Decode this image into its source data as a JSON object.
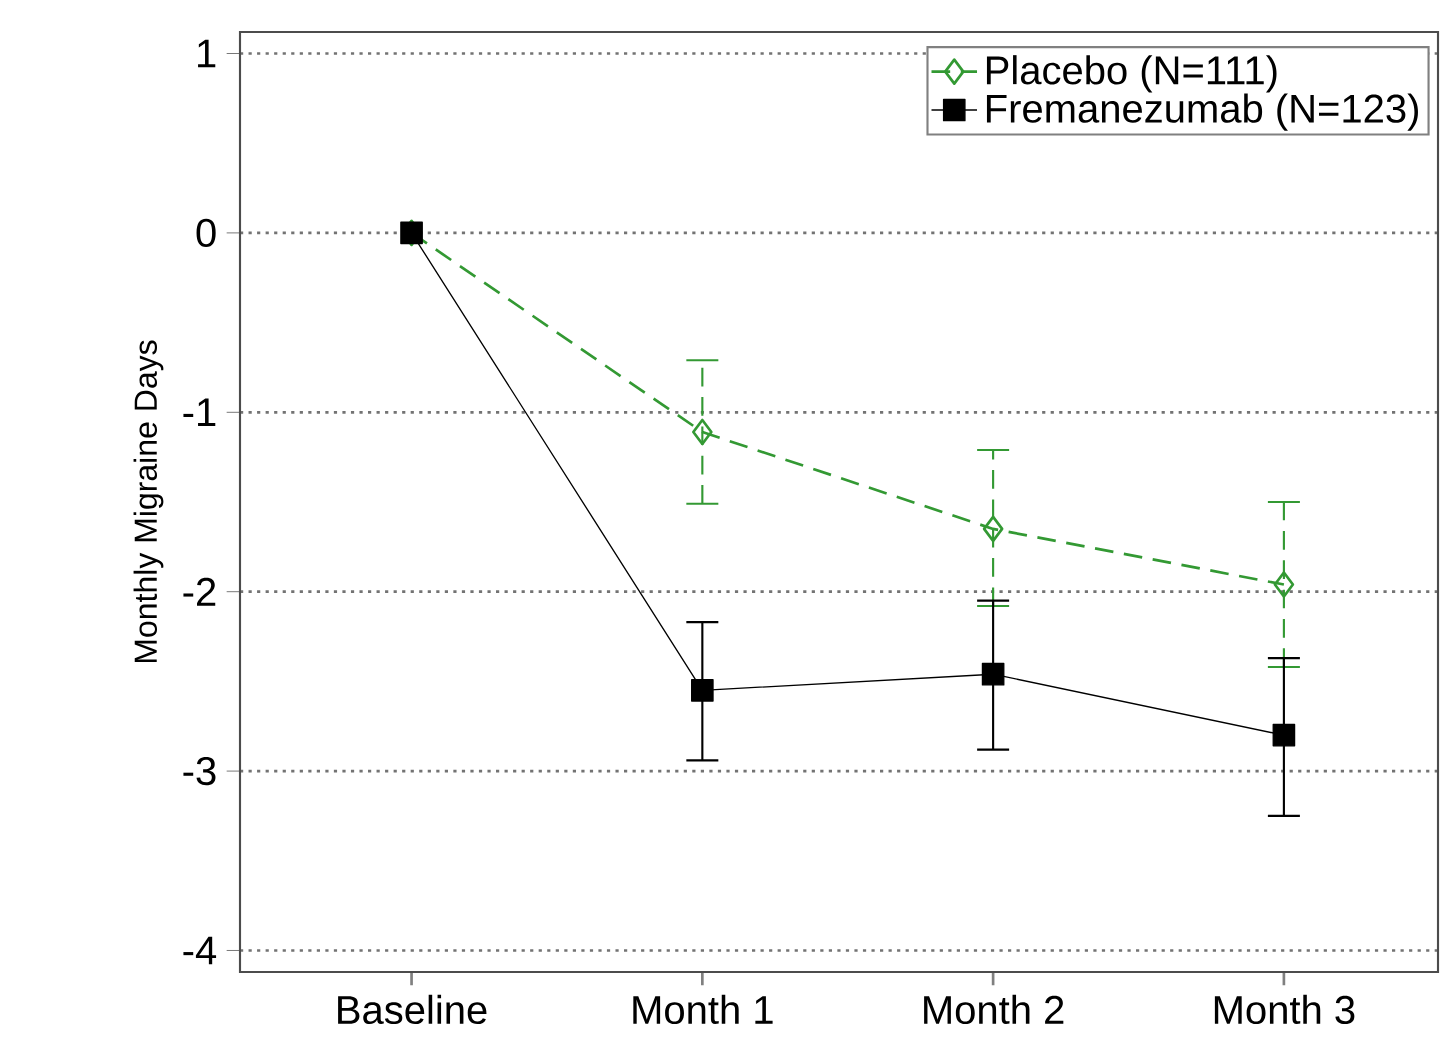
{
  "chart_data": {
    "type": "line",
    "ylabel": "Monthly Migraine Days",
    "categories": [
      "Baseline",
      "Month 1",
      "Month 2",
      "Month 3"
    ],
    "ylim": [
      -4.12,
      1.12
    ],
    "yticks": [
      -4,
      -3,
      -2,
      -1,
      0,
      1
    ],
    "grid": "y",
    "legend": "top right",
    "series": [
      {
        "name": "Placebo (N=111)",
        "color": "#339933",
        "marker": "diamond",
        "line_style": "dashed",
        "values": [
          0,
          -1.11,
          -1.65,
          -1.96
        ],
        "errors": [
          null,
          [
            -1.51,
            -0.71
          ],
          [
            -2.08,
            -1.21
          ],
          [
            -2.42,
            -1.5
          ]
        ]
      },
      {
        "name": "Fremanezumab (N=123)",
        "color": "#000000",
        "marker": "square",
        "line_style": "solid",
        "values": [
          0,
          -2.55,
          -2.46,
          -2.8
        ],
        "errors": [
          null,
          [
            -2.94,
            -2.17
          ],
          [
            -2.88,
            -2.05
          ],
          [
            -3.25,
            -2.37
          ]
        ]
      }
    ]
  }
}
